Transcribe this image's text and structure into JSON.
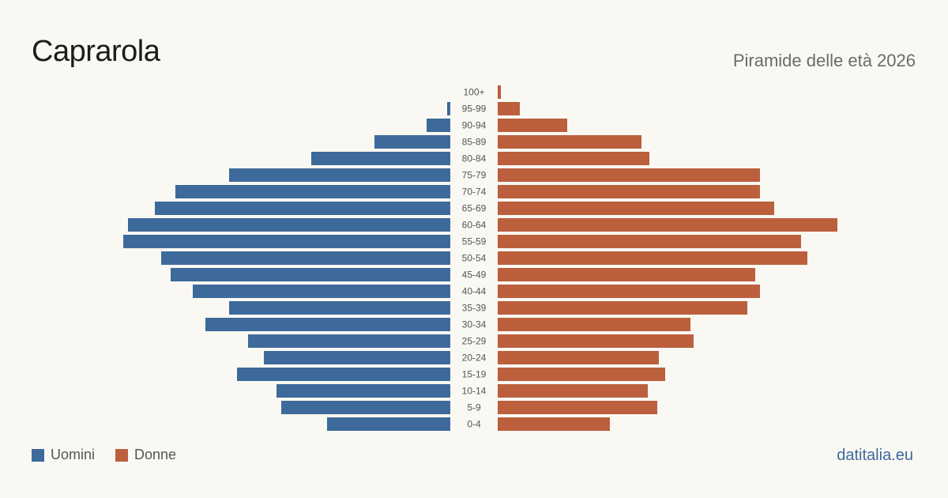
{
  "header": {
    "title": "Caprarola",
    "subtitle": "Piramide delle età 2026"
  },
  "legend": {
    "men_label": "Uomini",
    "women_label": "Donne"
  },
  "footer": {
    "source": "datitalia.eu"
  },
  "colors": {
    "men": "#3d6a9a",
    "women": "#bb5f3d",
    "age_label": "#555555"
  },
  "chart_data": {
    "type": "bar",
    "orientation": "horizontal-pyramid",
    "categories": [
      "100+",
      "95-99",
      "90-94",
      "85-89",
      "80-84",
      "75-79",
      "70-74",
      "65-69",
      "60-64",
      "55-59",
      "50-54",
      "45-49",
      "40-44",
      "35-39",
      "30-34",
      "25-29",
      "20-24",
      "15-19",
      "10-14",
      "5-9",
      "0-4"
    ],
    "series": [
      {
        "name": "Uomini",
        "values": [
          0,
          2,
          15,
          48,
          88,
          140,
          174,
          187,
          204,
          207,
          183,
          177,
          163,
          140,
          155,
          128,
          118,
          135,
          110,
          107,
          78
        ]
      },
      {
        "name": "Donne",
        "values": [
          2,
          14,
          44,
          91,
          96,
          166,
          166,
          175,
          215,
          192,
          196,
          163,
          166,
          158,
          122,
          124,
          102,
          106,
          95,
          101,
          71
        ]
      }
    ],
    "xlim": [
      0,
      215
    ]
  }
}
